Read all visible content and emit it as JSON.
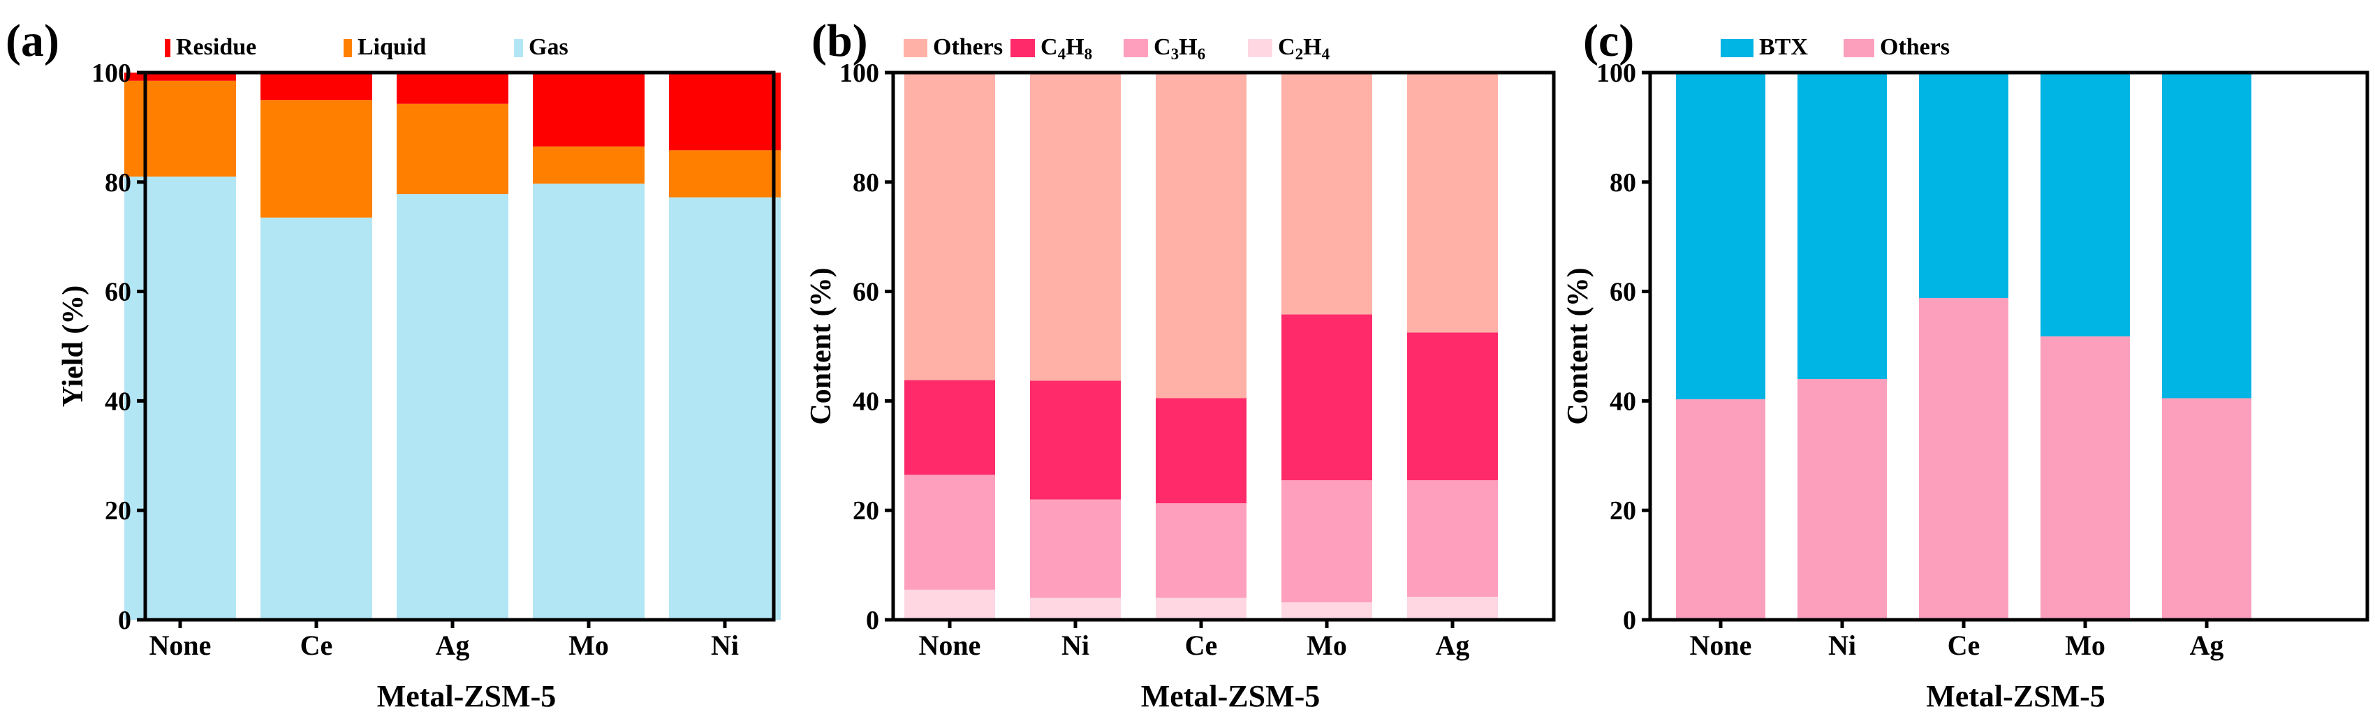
{
  "colors": {
    "Residue": "#ff0000",
    "Liquid": "#ff8000",
    "Gas": "#b3e6f5",
    "Others_b": "#ffb1a8",
    "C4H8": "#fe2a6a",
    "C3H6": "#ff9fbe",
    "C2H4": "#ffd7e2",
    "BTX": "#00b4e4",
    "Others_c": "#fb9fbd"
  },
  "chart_data": [
    {
      "type": "bar",
      "stacked": true,
      "panel_label": "(a)",
      "xlabel": "Metal-ZSM-5",
      "ylabel": "Yield (%)",
      "ylim": [
        0,
        100
      ],
      "yticks": [
        0,
        20,
        40,
        60,
        80,
        100
      ],
      "categories": [
        "None",
        "Ce",
        "Ag",
        "Mo",
        "Ni"
      ],
      "series": [
        {
          "name": "Gas",
          "values": [
            81,
            73.5,
            77.8,
            79.7,
            77.2
          ]
        },
        {
          "name": "Liquid",
          "values": [
            17.5,
            21.5,
            16.5,
            6.8,
            8.6
          ]
        },
        {
          "name": "Residue",
          "values": [
            1.5,
            5,
            5.7,
            13.5,
            14.2
          ]
        }
      ],
      "legend": [
        "Residue",
        "Liquid",
        "Gas"
      ],
      "legend_position": "top"
    },
    {
      "type": "bar",
      "stacked": true,
      "panel_label": "(b)",
      "xlabel": "Metal-ZSM-5",
      "ylabel": "Content (%)",
      "ylim": [
        0,
        100
      ],
      "yticks": [
        0,
        20,
        40,
        60,
        80,
        100
      ],
      "categories": [
        "None",
        "Ni",
        "Ce",
        "Mo",
        "Ag"
      ],
      "series": [
        {
          "name": "C2H4",
          "values": [
            5.5,
            4,
            4,
            3.2,
            4.2
          ]
        },
        {
          "name": "C3H6",
          "values": [
            21,
            18,
            17.3,
            22.3,
            21.3
          ]
        },
        {
          "name": "C4H8",
          "values": [
            17.3,
            21.7,
            19.2,
            30.3,
            27
          ]
        },
        {
          "name": "Others",
          "values": [
            56.2,
            56.3,
            59.5,
            44.2,
            47.5
          ]
        }
      ],
      "legend": [
        "Others",
        "C4H8",
        "C3H6",
        "C2H4"
      ],
      "legend_position": "top"
    },
    {
      "type": "bar",
      "stacked": true,
      "panel_label": "(c)",
      "xlabel": "Metal-ZSM-5",
      "ylabel": "Content (%)",
      "ylim": [
        0,
        100
      ],
      "yticks": [
        0,
        20,
        40,
        60,
        80,
        100
      ],
      "categories": [
        "None",
        "Ni",
        "Ce",
        "Mo",
        "Ag"
      ],
      "series": [
        {
          "name": "Others",
          "values": [
            40.3,
            44,
            58.8,
            51.8,
            40.5
          ]
        },
        {
          "name": "BTX",
          "values": [
            59.7,
            56,
            41.2,
            48.2,
            59.5
          ]
        }
      ],
      "legend": [
        "BTX",
        "Others"
      ],
      "legend_position": "top"
    }
  ]
}
